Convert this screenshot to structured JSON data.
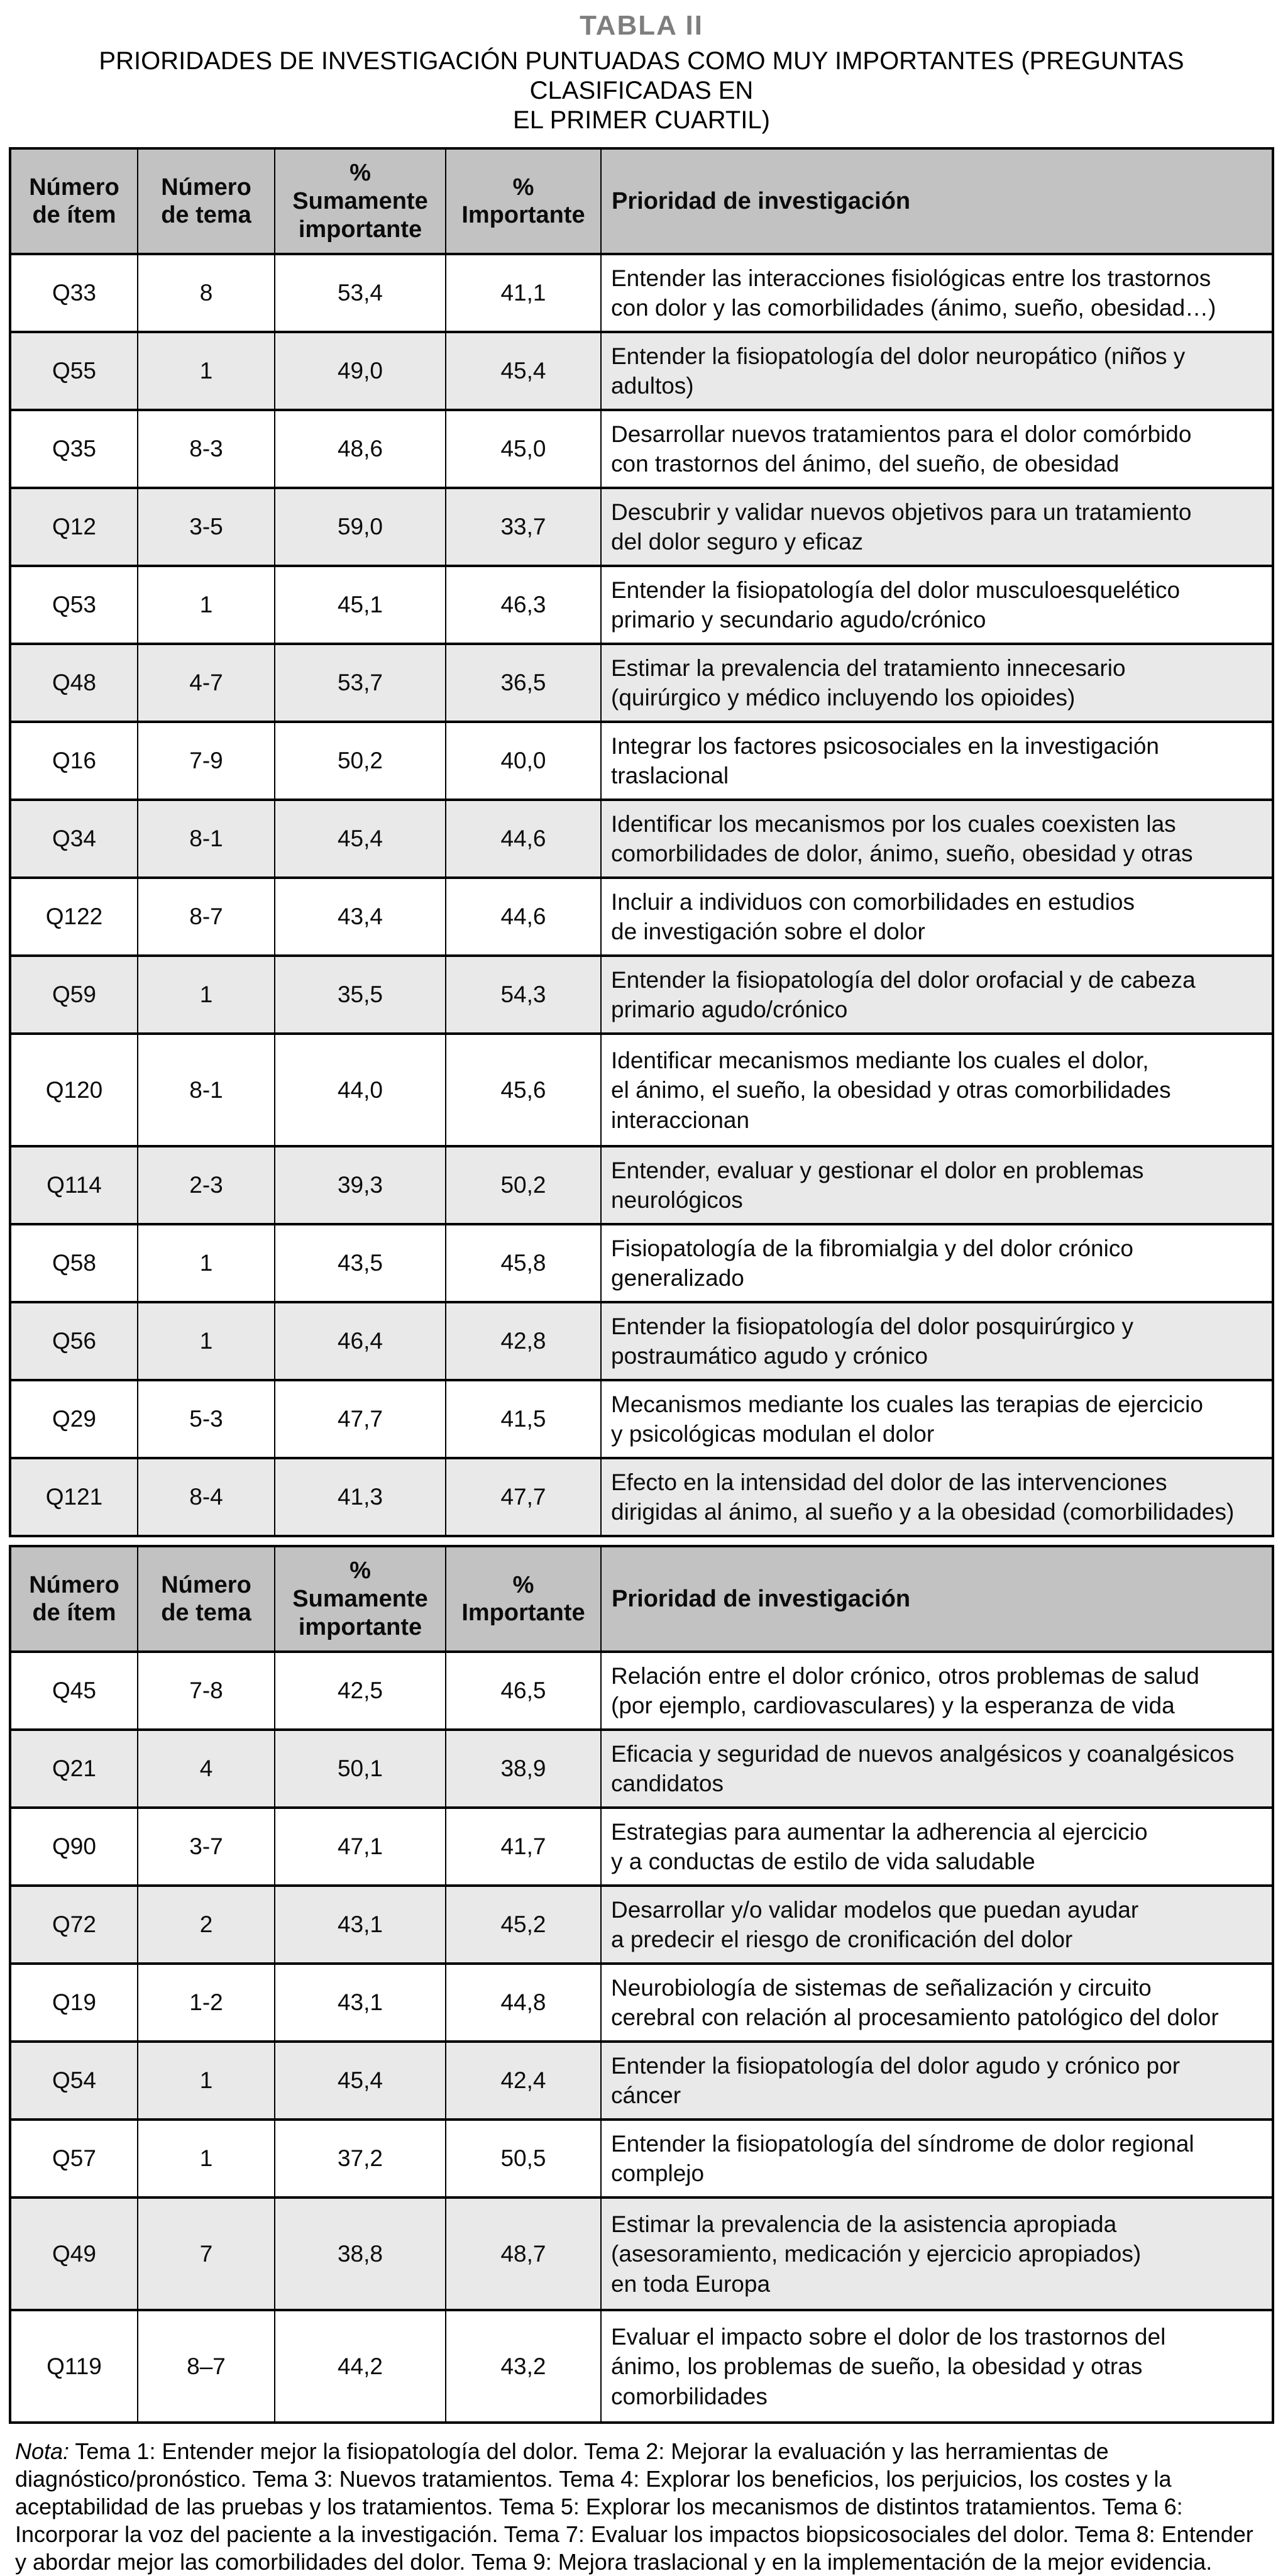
{
  "page": {
    "title": "TABLA II",
    "subtitle": "PRIORIDADES DE INVESTIGACIÓN PUNTUADAS COMO MUY IMPORTANTES (PREGUNTAS CLASIFICADAS EN\nEL PRIMER CUARTIL)",
    "note_label": "Nota:",
    "note_text": " Tema 1: Entender mejor la fisiopatología del dolor. Tema 2: Mejorar la evaluación y las herramientas de diagnóstico/pronóstico. Tema 3: Nuevos tratamientos. Tema 4: Explorar los beneficios, los perjuicios, los costes y la aceptabilidad de las pruebas y los tratamientos. Tema 5: Explorar los mecanismos de distintos tratamientos. Tema 6: Incorporar la voz del paciente a la investigación. Tema 7: Evaluar los impactos biopsicosociales del dolor. Tema 8: Entender y abordar mejor las comorbilidades del dolor. Tema 9: Mejora traslacional y en la implementación de la mejor evidencia."
  },
  "colors": {
    "header_bg": "#c2c2c2",
    "row_alt_bg": "#e9e9e9",
    "row_bg": "#ffffff",
    "title_color": "#7e7e7e",
    "border": "#000000"
  },
  "table": {
    "columns": [
      {
        "id": "item",
        "label": "Número\nde ítem"
      },
      {
        "id": "tema",
        "label": "Número\nde tema"
      },
      {
        "id": "sumamente",
        "label": "%\nSumamente\nimportante"
      },
      {
        "id": "importante",
        "label": "%\nImportante"
      },
      {
        "id": "prioridad",
        "label": "Prioridad de investigación"
      }
    ],
    "sections": [
      {
        "rows": [
          {
            "item": "Q33",
            "tema": "8",
            "sumamente": "53,4",
            "importante": "41,1",
            "prioridad": "Entender las interacciones fisiológicas entre los trastornos\ncon dolor y las comorbilidades (ánimo, sueño, obesidad…)",
            "shaded": false,
            "lines": 2
          },
          {
            "item": "Q55",
            "tema": "1",
            "sumamente": "49,0",
            "importante": "45,4",
            "prioridad": "Entender la fisiopatología del dolor neuropático (niños y\nadultos)",
            "shaded": true,
            "lines": 2
          },
          {
            "item": "Q35",
            "tema": "8-3",
            "sumamente": "48,6",
            "importante": "45,0",
            "prioridad": "Desarrollar nuevos tratamientos para el dolor comórbido\ncon trastornos del ánimo, del sueño, de obesidad",
            "shaded": false,
            "lines": 2
          },
          {
            "item": "Q12",
            "tema": "3-5",
            "sumamente": "59,0",
            "importante": "33,7",
            "prioridad": "Descubrir y validar nuevos objetivos para un tratamiento\ndel dolor seguro y eficaz",
            "shaded": true,
            "lines": 2
          },
          {
            "item": "Q53",
            "tema": "1",
            "sumamente": "45,1",
            "importante": "46,3",
            "prioridad": "Entender la fisiopatología del dolor musculoesquelético\nprimario y secundario agudo/crónico",
            "shaded": false,
            "lines": 2
          },
          {
            "item": "Q48",
            "tema": "4-7",
            "sumamente": "53,7",
            "importante": "36,5",
            "prioridad": "Estimar la prevalencia del tratamiento innecesario\n(quirúrgico y médico incluyendo los opioides)",
            "shaded": true,
            "lines": 2
          },
          {
            "item": "Q16",
            "tema": "7-9",
            "sumamente": "50,2",
            "importante": "40,0",
            "prioridad": "Integrar los factores psicosociales en la investigación\ntraslacional",
            "shaded": false,
            "lines": 2
          },
          {
            "item": "Q34",
            "tema": "8-1",
            "sumamente": "45,4",
            "importante": "44,6",
            "prioridad": "Identificar los mecanismos por los cuales coexisten las\ncomorbilidades de dolor, ánimo, sueño, obesidad y otras",
            "shaded": true,
            "lines": 2
          },
          {
            "item": "Q122",
            "tema": "8-7",
            "sumamente": "43,4",
            "importante": "44,6",
            "prioridad": "Incluir a individuos con comorbilidades en estudios\nde investigación sobre el dolor",
            "shaded": false,
            "lines": 2
          },
          {
            "item": "Q59",
            "tema": "1",
            "sumamente": "35,5",
            "importante": "54,3",
            "prioridad": "Entender la fisiopatología del dolor orofacial y de cabeza\nprimario agudo/crónico",
            "shaded": true,
            "lines": 2
          },
          {
            "item": "Q120",
            "tema": "8-1",
            "sumamente": "44,0",
            "importante": "45,6",
            "prioridad": "Identificar mecanismos mediante los cuales el dolor,\nel ánimo, el sueño, la obesidad y otras comorbilidades\ninteraccionan",
            "shaded": false,
            "lines": 3
          },
          {
            "item": "Q114",
            "tema": "2-3",
            "sumamente": "39,3",
            "importante": "50,2",
            "prioridad": "Entender, evaluar y gestionar el dolor en problemas\nneurológicos",
            "shaded": true,
            "lines": 2
          },
          {
            "item": "Q58",
            "tema": "1",
            "sumamente": "43,5",
            "importante": "45,8",
            "prioridad": "Fisiopatología de la fibromialgia y del dolor crónico\ngeneralizado",
            "shaded": false,
            "lines": 2
          },
          {
            "item": "Q56",
            "tema": "1",
            "sumamente": "46,4",
            "importante": "42,8",
            "prioridad": "Entender la fisiopatología del dolor posquirúrgico y\npostraumático agudo y crónico",
            "shaded": true,
            "lines": 2
          },
          {
            "item": "Q29",
            "tema": "5-3",
            "sumamente": "47,7",
            "importante": "41,5",
            "prioridad": "Mecanismos mediante los cuales las terapias de ejercicio\ny psicológicas modulan el dolor",
            "shaded": false,
            "lines": 2
          },
          {
            "item": "Q121",
            "tema": "8-4",
            "sumamente": "41,3",
            "importante": "47,7",
            "prioridad": "Efecto en la intensidad del dolor de las intervenciones\ndirigidas al ánimo, al sueño y a la obesidad (comorbilidades)",
            "shaded": true,
            "lines": 2
          }
        ]
      },
      {
        "rows": [
          {
            "item": "Q45",
            "tema": "7-8",
            "sumamente": "42,5",
            "importante": "46,5",
            "prioridad": "Relación entre el dolor crónico, otros problemas de salud\n(por ejemplo, cardiovasculares) y la esperanza de vida",
            "shaded": false,
            "lines": 2
          },
          {
            "item": "Q21",
            "tema": "4",
            "sumamente": "50,1",
            "importante": "38,9",
            "prioridad": "Eficacia y seguridad de nuevos analgésicos y coanalgésicos\ncandidatos",
            "shaded": true,
            "lines": 2
          },
          {
            "item": "Q90",
            "tema": "3-7",
            "sumamente": "47,1",
            "importante": "41,7",
            "prioridad": "Estrategias para aumentar la adherencia al ejercicio\ny a conductas de estilo de vida saludable",
            "shaded": false,
            "lines": 2
          },
          {
            "item": "Q72",
            "tema": "2",
            "sumamente": "43,1",
            "importante": "45,2",
            "prioridad": "Desarrollar y/o validar modelos que puedan ayudar\na predecir el riesgo de cronificación del dolor",
            "shaded": true,
            "lines": 2
          },
          {
            "item": "Q19",
            "tema": "1-2",
            "sumamente": "43,1",
            "importante": "44,8",
            "prioridad": "Neurobiología de sistemas de señalización y circuito\ncerebral con relación al procesamiento patológico del dolor",
            "shaded": false,
            "lines": 2
          },
          {
            "item": "Q54",
            "tema": "1",
            "sumamente": "45,4",
            "importante": "42,4",
            "prioridad": "Entender la fisiopatología del dolor agudo y crónico por\ncáncer",
            "shaded": true,
            "lines": 2
          },
          {
            "item": "Q57",
            "tema": "1",
            "sumamente": "37,2",
            "importante": "50,5",
            "prioridad": "Entender la fisiopatología del síndrome de dolor regional\ncomplejo",
            "shaded": false,
            "lines": 2
          },
          {
            "item": "Q49",
            "tema": "7",
            "sumamente": "38,8",
            "importante": "48,7",
            "prioridad": "Estimar la prevalencia de la asistencia apropiada\n(asesoramiento, medicación y ejercicio apropiados)\nen toda Europa",
            "shaded": true,
            "lines": 3
          },
          {
            "item": "Q119",
            "tema": "8–7",
            "sumamente": "44,2",
            "importante": "43,2",
            "prioridad": "Evaluar el impacto sobre el dolor de los trastornos del\nánimo, los problemas de sueño, la obesidad y otras\ncomorbilidades",
            "shaded": false,
            "lines": 3
          }
        ]
      }
    ]
  }
}
